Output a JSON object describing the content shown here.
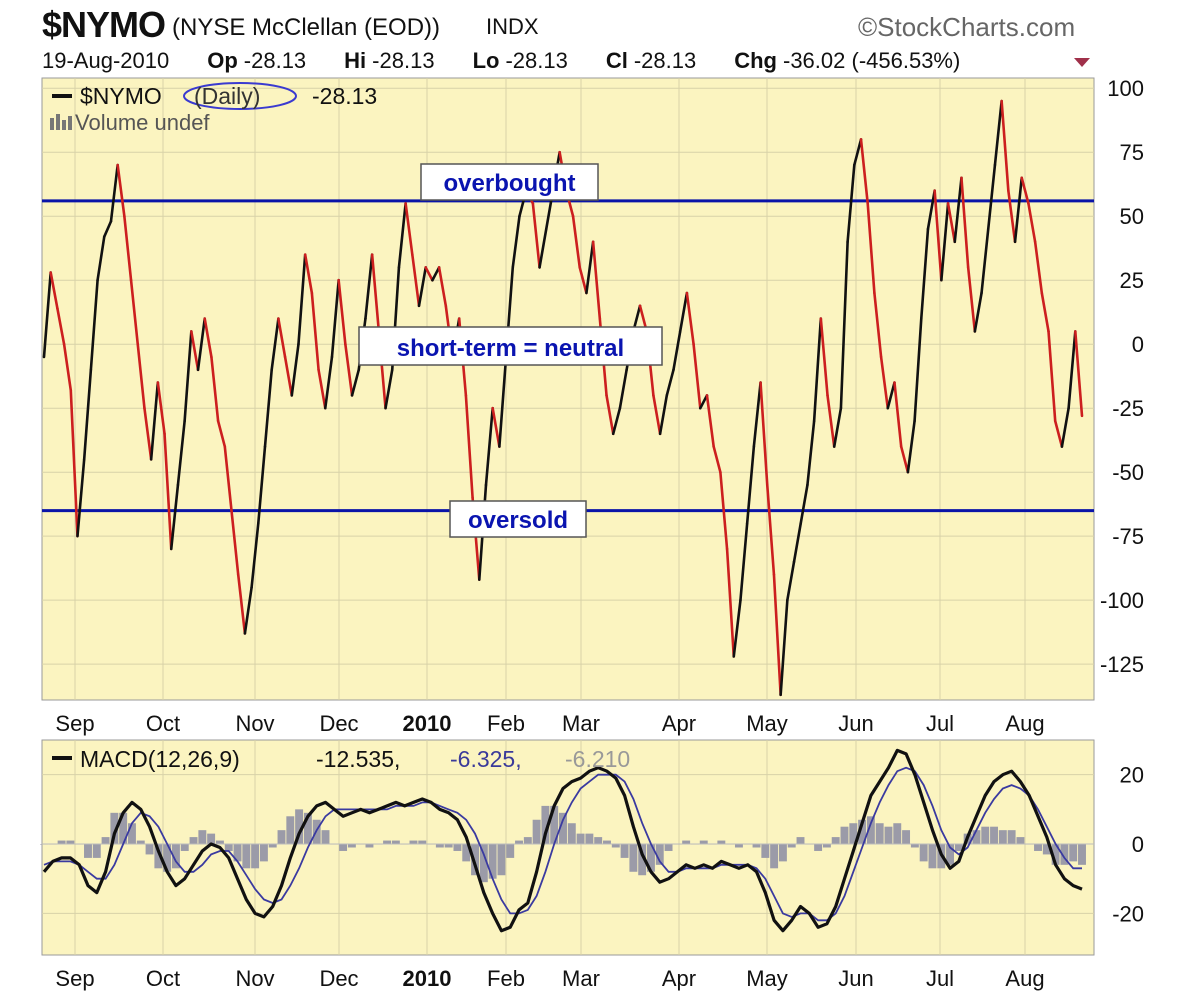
{
  "header": {
    "symbol": "$NYMO",
    "name": "(NYSE McClellan (EOD))",
    "exchange": "INDX",
    "watermark": "©StockCharts.com",
    "date": "19-Aug-2010",
    "op_label": "Op",
    "op_value": "-28.13",
    "hi_label": "Hi",
    "hi_value": "-28.13",
    "lo_label": "Lo",
    "lo_value": "-28.13",
    "cl_label": "Cl",
    "cl_value": "-28.13",
    "chg_label": "Chg",
    "chg_value": "-36.02 (-456.53%)"
  },
  "colors": {
    "background": "#fbf4c0",
    "up": "#111111",
    "down": "#cc1f1f",
    "band": "#0a14a8",
    "signal": "#3a3aa0",
    "histogram": "#9b9ba8"
  },
  "chart_data": [
    {
      "type": "line",
      "legend": {
        "series": "$NYMO",
        "period": "(Daily)",
        "value": "-28.13",
        "volume": "Volume undef",
        "placement": "top-left"
      },
      "months": [
        "Sep",
        "Oct",
        "Nov",
        "Dec",
        "2010",
        "Feb",
        "Mar",
        "Apr",
        "May",
        "Jun",
        "Jul",
        "Aug"
      ],
      "y_ticks": [
        100,
        75,
        50,
        25,
        0,
        -25,
        -50,
        -75,
        -100,
        -125
      ],
      "ylim": [
        -139,
        104
      ],
      "grid": true,
      "reference_lines": [
        56,
        -65
      ],
      "annotations": {
        "overbought": "overbought",
        "neutral": "short-term = neutral",
        "oversold": "oversold"
      },
      "series": [
        {
          "values": [
            -5,
            28,
            14,
            0,
            -18,
            -75,
            -45,
            -10,
            25,
            42,
            48,
            70,
            50,
            25,
            0,
            -25,
            -45,
            -15,
            -35,
            -80,
            -55,
            -30,
            5,
            -10,
            10,
            -5,
            -30,
            -40,
            -65,
            -90,
            -113,
            -95,
            -70,
            -40,
            -10,
            10,
            -5,
            -20,
            0,
            35,
            20,
            -10,
            -25,
            -5,
            25,
            0,
            -20,
            -10,
            10,
            35,
            5,
            -25,
            -10,
            30,
            55,
            35,
            15,
            30,
            25,
            30,
            15,
            -5,
            10,
            -20,
            -60,
            -92,
            -55,
            -25,
            -40,
            -5,
            30,
            50,
            60,
            55,
            30,
            45,
            60,
            75,
            60,
            50,
            30,
            20,
            40,
            10,
            -20,
            -35,
            -25,
            -10,
            5,
            15,
            5,
            -20,
            -35,
            -20,
            -10,
            5,
            20,
            0,
            -25,
            -20,
            -40,
            -50,
            -80,
            -122,
            -100,
            -70,
            -40,
            -15,
            -55,
            -90,
            -137,
            -100,
            -85,
            -70,
            -55,
            -30,
            10,
            -20,
            -40,
            -25,
            40,
            70,
            80,
            55,
            20,
            -5,
            -25,
            -15,
            -40,
            -50,
            -30,
            10,
            45,
            60,
            25,
            55,
            40,
            65,
            30,
            5,
            20,
            45,
            70,
            95,
            60,
            40,
            65,
            55,
            40,
            20,
            5,
            -30,
            -40,
            -25,
            5,
            -28
          ]
        }
      ]
    },
    {
      "type": "line",
      "legend": {
        "label": "MACD(12,26,9)",
        "macd": "-12.535,",
        "signal": "-6.325,",
        "histogram": "-6.210",
        "placement": "top-left"
      },
      "months": [
        "Sep",
        "Oct",
        "Nov",
        "Dec",
        "2010",
        "Feb",
        "Mar",
        "Apr",
        "May",
        "Jun",
        "Jul",
        "Aug"
      ],
      "y_ticks": [
        20,
        0,
        -20
      ],
      "ylim": [
        -32,
        30
      ],
      "grid": true,
      "series": [
        {
          "name": "MACD",
          "values": [
            -8,
            -5,
            -4,
            -4,
            -6,
            -12,
            -14,
            -8,
            3,
            9,
            12,
            10,
            5,
            -2,
            -8,
            -12,
            -10,
            -6,
            -2,
            0,
            -1,
            -4,
            -10,
            -16,
            -20,
            -21,
            -18,
            -12,
            -4,
            3,
            8,
            11,
            12,
            10,
            8,
            9,
            10,
            9,
            10,
            11,
            12,
            11,
            12,
            13,
            12,
            10,
            9,
            7,
            2,
            -6,
            -14,
            -20,
            -25,
            -24,
            -19,
            -17,
            -8,
            3,
            11,
            16,
            18,
            19,
            21,
            22,
            21,
            19,
            14,
            5,
            -3,
            -8,
            -11,
            -10,
            -8,
            -6,
            -7,
            -6,
            -7,
            -5,
            -6,
            -7,
            -6,
            -8,
            -14,
            -22,
            -25,
            -22,
            -18,
            -20,
            -24,
            -23,
            -18,
            -10,
            -2,
            6,
            14,
            18,
            22,
            27,
            26,
            20,
            12,
            4,
            -3,
            -7,
            -5,
            2,
            8,
            14,
            18,
            20,
            21,
            18,
            14,
            8,
            2,
            -6,
            -10,
            -12,
            -13
          ]
        },
        {
          "name": "Signal",
          "values": [
            -6,
            -5,
            -5,
            -5,
            -6,
            -8,
            -10,
            -10,
            -6,
            0,
            6,
            9,
            8,
            5,
            0,
            -5,
            -8,
            -8,
            -6,
            -3,
            -2,
            -2,
            -5,
            -9,
            -13,
            -16,
            -17,
            -16,
            -12,
            -7,
            -1,
            4,
            8,
            10,
            10,
            10,
            10,
            10,
            10,
            10,
            11,
            11,
            11,
            12,
            12,
            11,
            10,
            9,
            7,
            3,
            -3,
            -10,
            -16,
            -20,
            -20,
            -19,
            -15,
            -8,
            0,
            7,
            12,
            16,
            18,
            20,
            20,
            20,
            18,
            13,
            6,
            0,
            -5,
            -8,
            -8,
            -7,
            -7,
            -7,
            -7,
            -6,
            -6,
            -6,
            -6,
            -7,
            -10,
            -15,
            -20,
            -21,
            -20,
            -20,
            -22,
            -22,
            -20,
            -15,
            -8,
            -1,
            6,
            12,
            17,
            21,
            22,
            21,
            17,
            11,
            4,
            -1,
            -3,
            -1,
            4,
            9,
            13,
            16,
            17,
            16,
            14,
            10,
            5,
            0,
            -4,
            -7,
            -7
          ]
        },
        {
          "name": "Histogram",
          "values": [
            0,
            0,
            1,
            1,
            0,
            -4,
            -4,
            2,
            9,
            9,
            6,
            1,
            -3,
            -7,
            -8,
            -7,
            -2,
            2,
            4,
            3,
            1,
            -2,
            -5,
            -7,
            -7,
            -5,
            -1,
            4,
            8,
            10,
            9,
            7,
            4,
            0,
            -2,
            -1,
            0,
            -1,
            0,
            1,
            1,
            0,
            1,
            1,
            0,
            -1,
            -1,
            -2,
            -5,
            -9,
            -11,
            -10,
            -9,
            -4,
            1,
            2,
            7,
            11,
            11,
            9,
            6,
            3,
            3,
            2,
            1,
            -1,
            -4,
            -8,
            -9,
            -8,
            -6,
            -2,
            0,
            1,
            0,
            1,
            0,
            1,
            0,
            -1,
            0,
            -1,
            -4,
            -7,
            -5,
            -1,
            2,
            0,
            -2,
            -1,
            2,
            5,
            6,
            7,
            8,
            6,
            5,
            6,
            4,
            -1,
            -5,
            -7,
            -7,
            -6,
            -2,
            3,
            4,
            5,
            5,
            4,
            4,
            2,
            0,
            -2,
            -3,
            -6,
            -6,
            -5,
            -6
          ]
        }
      ]
    }
  ]
}
